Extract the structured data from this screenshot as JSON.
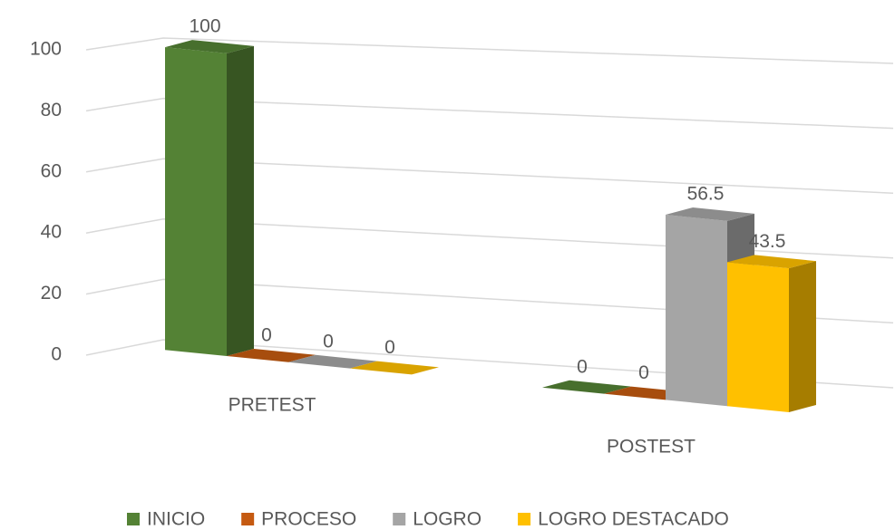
{
  "chart_data": {
    "type": "bar3d",
    "categories": [
      "PRETEST",
      "POSTEST"
    ],
    "series": [
      {
        "name": "INICIO",
        "color": "#548235",
        "values": [
          100,
          0
        ]
      },
      {
        "name": "PROCESO",
        "color": "#c55a11",
        "values": [
          0,
          0
        ]
      },
      {
        "name": "LOGRO",
        "color": "#a5a5a5",
        "values": [
          0,
          56.5
        ]
      },
      {
        "name": "LOGRO DESTACADO",
        "color": "#ffc000",
        "values": [
          0,
          43.5
        ]
      }
    ],
    "ylim": [
      0,
      100
    ],
    "yticks": [
      0,
      20,
      40,
      60,
      80,
      100
    ],
    "grid": true,
    "legend": "bottom"
  }
}
